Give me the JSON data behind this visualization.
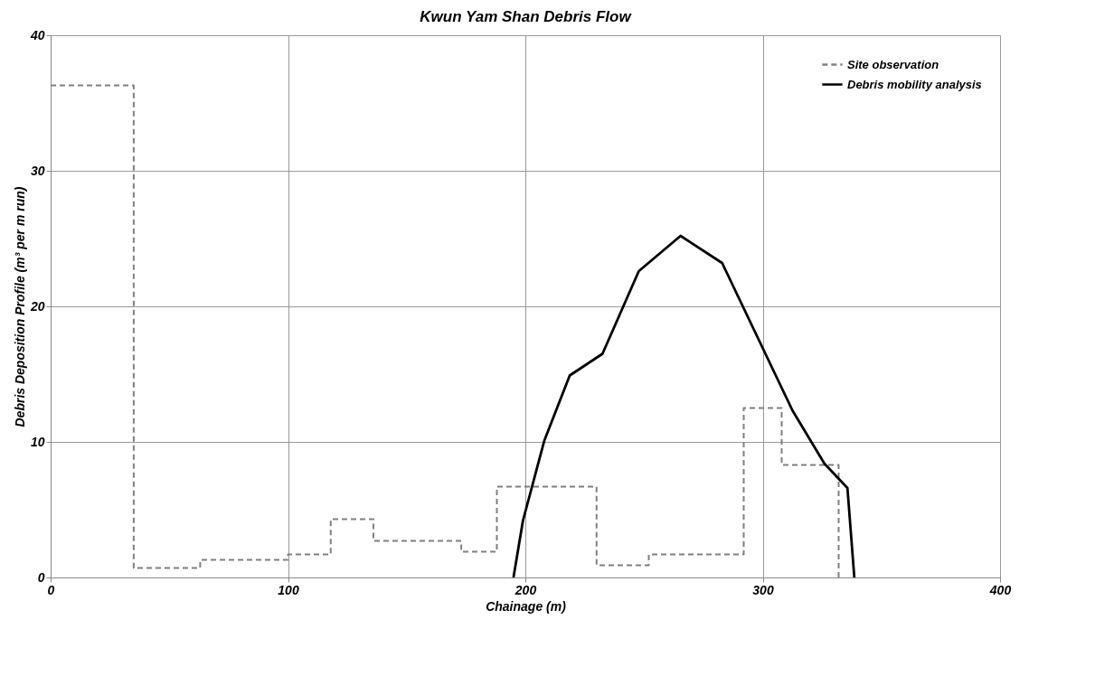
{
  "chart_data": {
    "type": "line",
    "title": "Kwun Yam Shan Debris Flow",
    "xlabel": "Chainage (m)",
    "ylabel": "Debris Deposition Profile (m³ per m run)",
    "xlim": [
      0,
      400
    ],
    "xticks": [
      0,
      100,
      200,
      300,
      400
    ],
    "ylim": [
      0,
      40
    ],
    "yticks": [
      0,
      10,
      20,
      30,
      40
    ],
    "grid": true,
    "legend": "top right",
    "marker": "none",
    "series": [
      {
        "name": "Site observation",
        "type": "step",
        "line_style": "dashed",
        "color": "#808080",
        "x": [
          0,
          35,
          63,
          100,
          118,
          136,
          173,
          188,
          230,
          252,
          292,
          308,
          332
        ],
        "values": [
          36.3,
          0.7,
          1.3,
          1.7,
          4.3,
          2.7,
          1.9,
          6.7,
          0.9,
          1.7,
          12.5,
          8.3,
          0
        ]
      },
      {
        "name": "Debris mobility analysis",
        "type": "line",
        "line_style": "solid",
        "color": "#000000",
        "x": [
          195,
          199,
          208,
          218.7,
          232.5,
          247.8,
          265.4,
          282.9,
          312.6,
          326,
          335.7,
          338.6
        ],
        "values": [
          0,
          4.2,
          10.1,
          14.9,
          16.5,
          22.6,
          25.2,
          23.2,
          12.3,
          8.4,
          6.6,
          0
        ]
      }
    ]
  }
}
